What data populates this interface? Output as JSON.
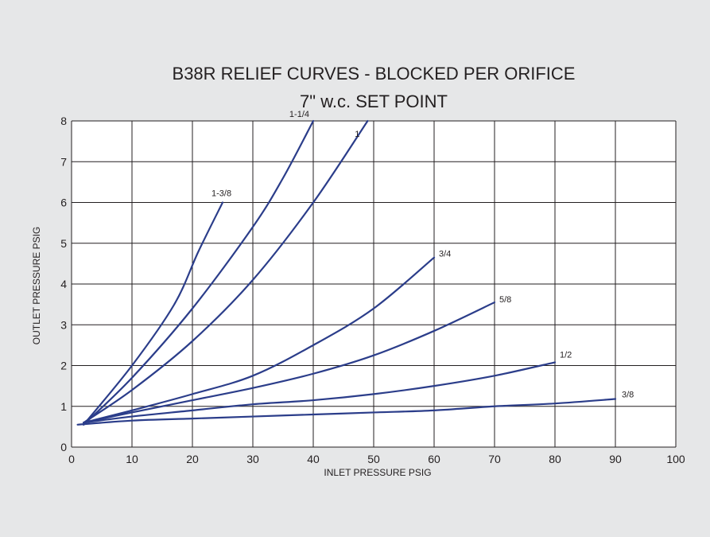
{
  "chart_data": {
    "type": "line",
    "title": "B38R RELIEF CURVES - BLOCKED PER ORIFICE",
    "subtitle": "7\" w.c. SET POINT",
    "xlabel": "INLET  PRESSURE PSIG",
    "ylabel": "OUTLET PRESSURE PSIG",
    "xlim": [
      0,
      100
    ],
    "ylim": [
      0,
      8
    ],
    "xticks": [
      "0",
      "10",
      "20",
      "30",
      "40",
      "50",
      "60",
      "70",
      "80",
      "90",
      "100"
    ],
    "yticks": [
      "0",
      "1",
      "2",
      "3",
      "4",
      "5",
      "6",
      "7",
      "8"
    ],
    "grid": true,
    "line_color": "#2b3d8a",
    "plot_background": "#ffffff",
    "page_background": "#e6e7e8",
    "series": [
      {
        "name": "1-3/8",
        "points": [
          [
            2,
            0.55
          ],
          [
            10,
            2.0
          ],
          [
            17,
            3.5
          ],
          [
            21,
            4.8
          ],
          [
            25,
            6.0
          ]
        ]
      },
      {
        "name": "1-1/4",
        "points": [
          [
            2,
            0.55
          ],
          [
            10,
            1.7
          ],
          [
            20,
            3.4
          ],
          [
            30,
            5.4
          ],
          [
            35,
            6.6
          ],
          [
            40,
            8.0
          ]
        ]
      },
      {
        "name": "1",
        "points": [
          [
            2,
            0.6
          ],
          [
            10,
            1.4
          ],
          [
            20,
            2.6
          ],
          [
            30,
            4.1
          ],
          [
            40,
            6.0
          ],
          [
            49,
            8.0
          ]
        ]
      },
      {
        "name": "3/4",
        "points": [
          [
            2,
            0.6
          ],
          [
            10,
            0.9
          ],
          [
            20,
            1.3
          ],
          [
            30,
            1.75
          ],
          [
            40,
            2.5
          ],
          [
            50,
            3.4
          ],
          [
            60,
            4.65
          ]
        ]
      },
      {
        "name": "5/8",
        "points": [
          [
            2,
            0.6
          ],
          [
            10,
            0.85
          ],
          [
            20,
            1.15
          ],
          [
            30,
            1.45
          ],
          [
            40,
            1.8
          ],
          [
            50,
            2.25
          ],
          [
            60,
            2.85
          ],
          [
            70,
            3.55
          ]
        ]
      },
      {
        "name": "1/2",
        "points": [
          [
            2,
            0.6
          ],
          [
            10,
            0.75
          ],
          [
            20,
            0.9
          ],
          [
            30,
            1.05
          ],
          [
            40,
            1.15
          ],
          [
            50,
            1.3
          ],
          [
            60,
            1.5
          ],
          [
            70,
            1.75
          ],
          [
            80,
            2.08
          ]
        ]
      },
      {
        "name": "3/8",
        "points": [
          [
            1,
            0.55
          ],
          [
            10,
            0.65
          ],
          [
            20,
            0.7
          ],
          [
            30,
            0.75
          ],
          [
            40,
            0.8
          ],
          [
            50,
            0.85
          ],
          [
            60,
            0.9
          ],
          [
            70,
            1.0
          ],
          [
            80,
            1.07
          ],
          [
            90,
            1.18
          ]
        ]
      }
    ]
  }
}
